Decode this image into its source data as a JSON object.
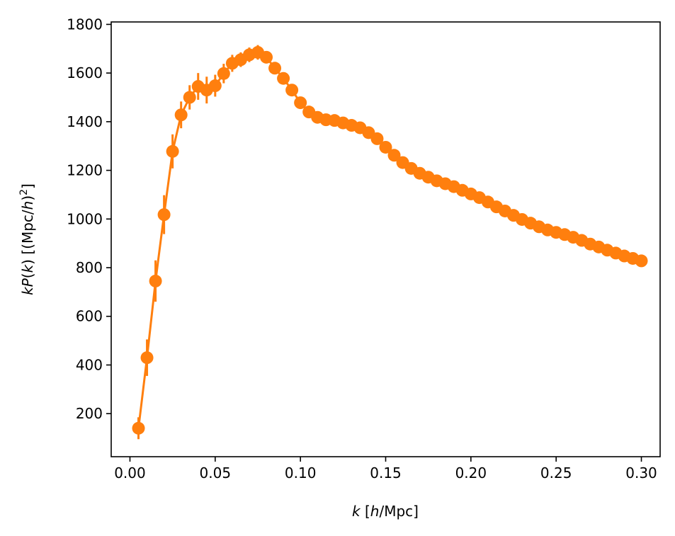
{
  "chart_data": {
    "type": "line",
    "title": "",
    "xlabel": {
      "italic": "k",
      "rest": " [",
      "unit_italic": "h",
      "unit_rest": "/Mpc]"
    },
    "ylabel": {
      "p1": "k",
      "p2": "P",
      "p3": "(",
      "p4": "k",
      "p5": ") [(Mpc/",
      "p6": "h",
      "p7": ")",
      "p8": "2",
      "p9": "]"
    },
    "xlim": [
      -0.011,
      0.311
    ],
    "ylim": [
      23,
      1810
    ],
    "xticks": [
      0.0,
      0.05,
      0.1,
      0.15,
      0.2,
      0.25,
      0.3
    ],
    "xtick_labels": [
      "0.00",
      "0.05",
      "0.10",
      "0.15",
      "0.20",
      "0.25",
      "0.30"
    ],
    "yticks": [
      200,
      400,
      600,
      800,
      1000,
      1200,
      1400,
      1600,
      1800
    ],
    "ytick_labels": [
      "200",
      "400",
      "600",
      "800",
      "1000",
      "1200",
      "1400",
      "1600",
      "1800"
    ],
    "grid": false,
    "color": "#ff7f0e",
    "series": [
      {
        "x": [
          0.005,
          0.01,
          0.015,
          0.02,
          0.025,
          0.03,
          0.035,
          0.04,
          0.045,
          0.05,
          0.055,
          0.06,
          0.065,
          0.07,
          0.075,
          0.08,
          0.085,
          0.09,
          0.095,
          0.1,
          0.105,
          0.11,
          0.115,
          0.12,
          0.125,
          0.13,
          0.135,
          0.14,
          0.145,
          0.15,
          0.155,
          0.16,
          0.165,
          0.17,
          0.175,
          0.18,
          0.185,
          0.19,
          0.195,
          0.2,
          0.205,
          0.21,
          0.215,
          0.22,
          0.225,
          0.23,
          0.235,
          0.24,
          0.245,
          0.25,
          0.255,
          0.26,
          0.265,
          0.27,
          0.275,
          0.28,
          0.285,
          0.29,
          0.295,
          0.3
        ],
        "y": [
          140,
          430,
          745,
          1018,
          1278,
          1428,
          1500,
          1545,
          1530,
          1548,
          1598,
          1640,
          1655,
          1675,
          1685,
          1665,
          1620,
          1578,
          1530,
          1478,
          1440,
          1418,
          1408,
          1405,
          1395,
          1385,
          1375,
          1355,
          1330,
          1295,
          1262,
          1232,
          1208,
          1188,
          1172,
          1157,
          1145,
          1133,
          1118,
          1103,
          1088,
          1070,
          1050,
          1033,
          1015,
          998,
          983,
          968,
          955,
          945,
          936,
          925,
          912,
          897,
          885,
          872,
          860,
          848,
          838,
          828
        ],
        "yerr": [
          45,
          75,
          85,
          80,
          70,
          55,
          50,
          55,
          55,
          45,
          40,
          35,
          30,
          30,
          30,
          25,
          22,
          20,
          18,
          15,
          13,
          12,
          11,
          10,
          10,
          10,
          9,
          9,
          8,
          8,
          8,
          7,
          7,
          7,
          6,
          6,
          6,
          6,
          6,
          5,
          5,
          5,
          5,
          5,
          5,
          5,
          4,
          4,
          4,
          4,
          4,
          4,
          4,
          4,
          4,
          4,
          4,
          4,
          4,
          4
        ]
      }
    ]
  }
}
